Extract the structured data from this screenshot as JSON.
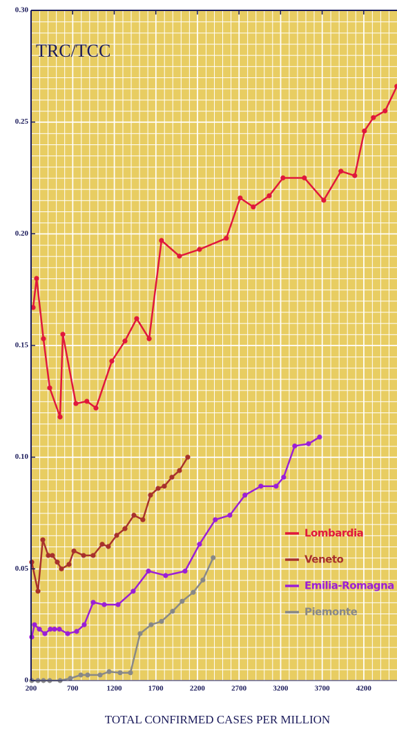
{
  "chart_data": {
    "type": "line",
    "title": "TRC/TCC",
    "x_label": "TOTAL CONFIRMED CASES PER MILLION",
    "xlim": [
      200,
      4600
    ],
    "xticks": [
      200,
      700,
      1200,
      1700,
      2200,
      2700,
      3200,
      3700,
      4200
    ],
    "ylim": [
      0,
      0.3
    ],
    "yticks": [
      0,
      0.05,
      {
        "value": 0.1,
        "label": "0.10"
      },
      0.15,
      {
        "value": 0.2,
        "label": "0.20"
      },
      0.25,
      {
        "value": 0.3,
        "label": "0.30"
      }
    ],
    "grid": true,
    "legend": "lower right",
    "series": [
      {
        "name": "Lombardia",
        "color": "#e0173c",
        "x": [
          225,
          266,
          349,
          424,
          549,
          582,
          739,
          871,
          980,
          1171,
          1329,
          1470,
          1620,
          1768,
          1984,
          2225,
          2548,
          2714,
          2872,
          3063,
          3229,
          3486,
          3719,
          3926,
          4092,
          4208,
          4316,
          4457,
          4598
        ],
        "values": [
          0.167,
          0.18,
          0.153,
          0.131,
          0.118,
          0.155,
          0.124,
          0.125,
          0.122,
          0.143,
          0.152,
          0.162,
          0.153,
          0.197,
          0.19,
          0.193,
          0.198,
          0.216,
          0.212,
          0.217,
          0.225,
          0.225,
          0.215,
          0.228,
          0.226,
          0.246,
          0.252,
          0.255,
          0.266
        ]
      },
      {
        "name": "Veneto",
        "color": "#a8312c",
        "x": [
          208,
          283,
          341,
          407,
          457,
          515,
          565,
          656,
          715,
          831,
          947,
          1055,
          1129,
          1229,
          1329,
          1436,
          1544,
          1636,
          1727,
          1802,
          1893,
          1984,
          2084
        ],
        "values": [
          0.053,
          0.04,
          0.063,
          0.056,
          0.056,
          0.053,
          0.05,
          0.052,
          0.058,
          0.056,
          0.056,
          0.061,
          0.06,
          0.065,
          0.068,
          0.074,
          0.072,
          0.083,
          0.086,
          0.087,
          0.091,
          0.094,
          0.1
        ]
      },
      {
        "name": "Emilia-Romagna",
        "color": "#9b1fd6",
        "x": [
          208,
          241,
          300,
          366,
          432,
          482,
          540,
          640,
          748,
          839,
          947,
          1080,
          1246,
          1428,
          1611,
          1818,
          2051,
          2225,
          2415,
          2590,
          2772,
          2963,
          3146,
          3237,
          3370,
          3536,
          3669
        ],
        "values": [
          0.0195,
          0.025,
          0.023,
          0.021,
          0.023,
          0.023,
          0.023,
          0.021,
          0.022,
          0.025,
          0.035,
          0.034,
          0.034,
          0.04,
          0.049,
          0.047,
          0.049,
          0.061,
          0.072,
          0.074,
          0.083,
          0.087,
          0.087,
          0.091,
          0.105,
          0.106,
          0.109
        ]
      },
      {
        "name": "Piemonte",
        "color": "#888888",
        "x": [
          208,
          283,
          349,
          424,
          549,
          673,
          798,
          880,
          1030,
          1138,
          1271,
          1395,
          1511,
          1644,
          1768,
          1901,
          2017,
          2150,
          2266,
          2390
        ],
        "values": [
          0,
          0,
          0,
          0,
          0,
          0.001,
          0.0025,
          0.0025,
          0.0025,
          0.004,
          0.0035,
          0.0035,
          0.021,
          0.025,
          0.0265,
          0.031,
          0.0355,
          0.0395,
          0.045,
          0.055
        ]
      }
    ]
  }
}
